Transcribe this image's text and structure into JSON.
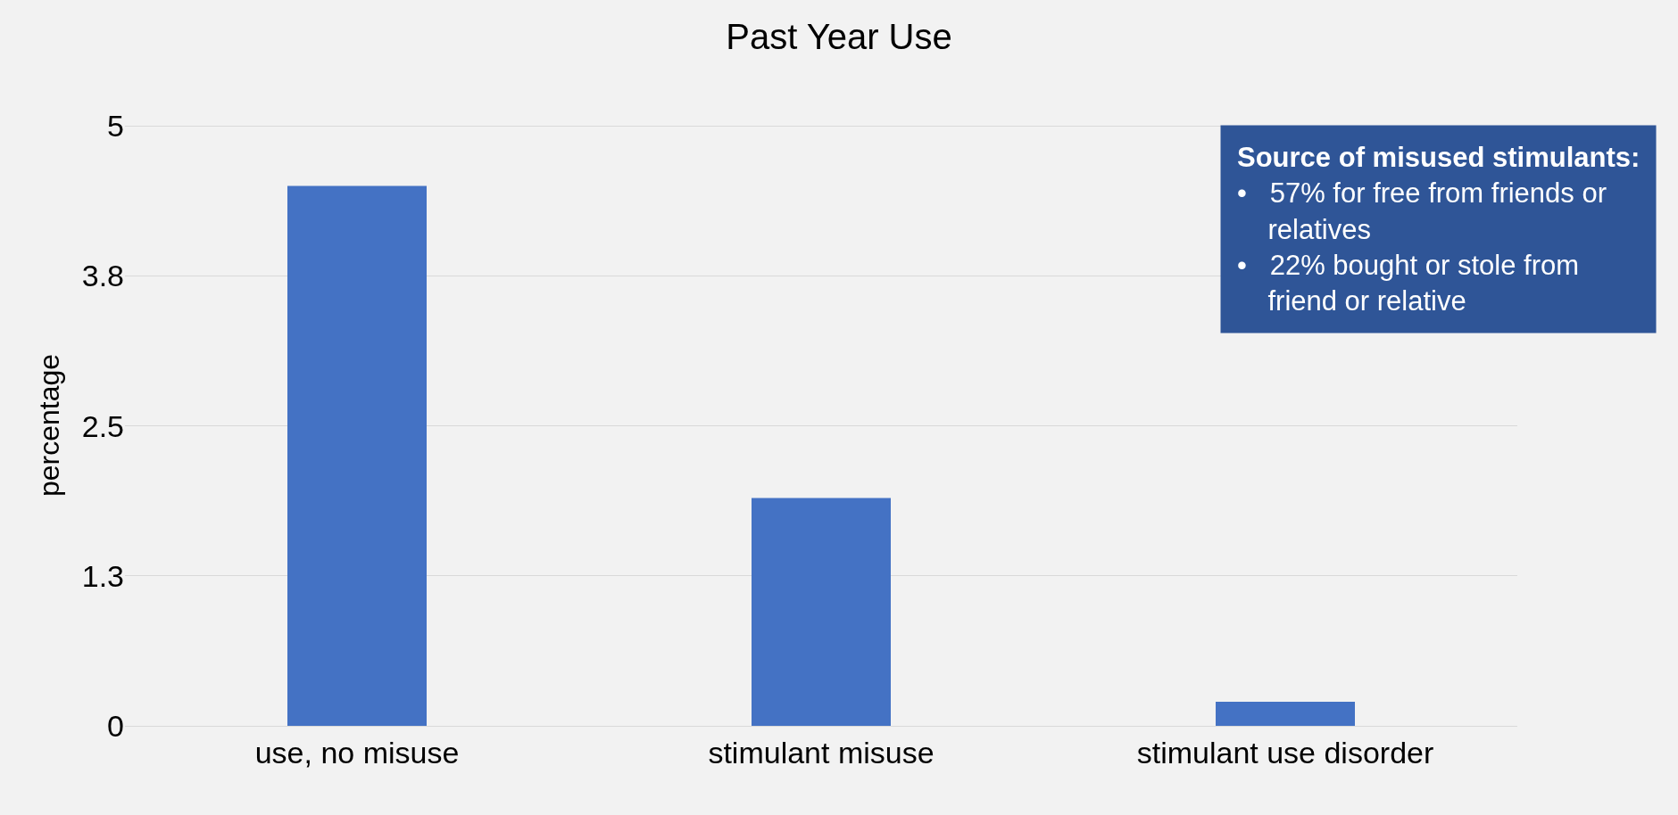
{
  "chart_data": {
    "type": "bar",
    "title": "Past Year Use",
    "ylabel": "percentage",
    "categories": [
      "use, no misuse",
      "stimulant misuse",
      "stimulant use disorder"
    ],
    "values": [
      4.5,
      1.9,
      0.2
    ],
    "color": "#4472c4",
    "ylim": [
      0,
      5
    ],
    "yticks": [
      0,
      {
        "value": 1.25,
        "label": "1.3"
      },
      2.5,
      {
        "value": 3.75,
        "label": "3.8"
      },
      5
    ],
    "grid": "y",
    "annotations": [
      "Source of misused stimulants:\n•   57% for free from friends or\n    relatives\n•   22% bought or stole from\n    friend or relative"
    ]
  }
}
